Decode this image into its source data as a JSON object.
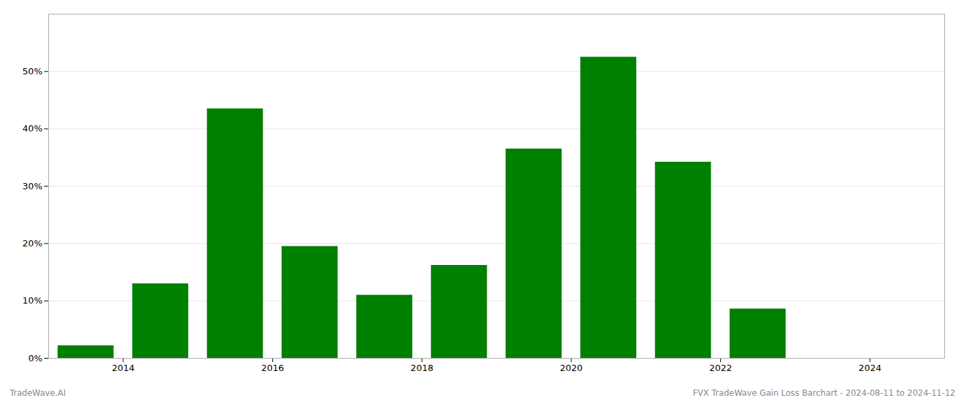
{
  "chart_data": {
    "type": "bar",
    "x": [
      2013.5,
      2014.5,
      2015.5,
      2016.5,
      2017.5,
      2018.5,
      2019.5,
      2020.5,
      2021.5,
      2022.5
    ],
    "values": [
      0.022,
      0.13,
      0.435,
      0.195,
      0.11,
      0.162,
      0.365,
      0.525,
      0.342,
      0.086
    ],
    "color": "#008000",
    "xlim": [
      2013.0,
      2025.0
    ],
    "xticks": [
      2014,
      2016,
      2018,
      2020,
      2022,
      2024
    ],
    "ylim": [
      0,
      0.6
    ],
    "yticks": [
      {
        "value": 0,
        "label": "0%"
      },
      {
        "value": 0.1,
        "label": "10%"
      },
      {
        "value": 0.2,
        "label": "20%"
      },
      {
        "value": 0.3,
        "label": "30%"
      },
      {
        "value": 0.4,
        "label": "40%"
      },
      {
        "value": 0.5,
        "label": "50%"
      }
    ],
    "grid": true,
    "annotations": [
      "TradeWave.AI",
      "FVX TradeWave Gain Loss Barchart - 2024-08-11 to 2024-11-12"
    ]
  }
}
